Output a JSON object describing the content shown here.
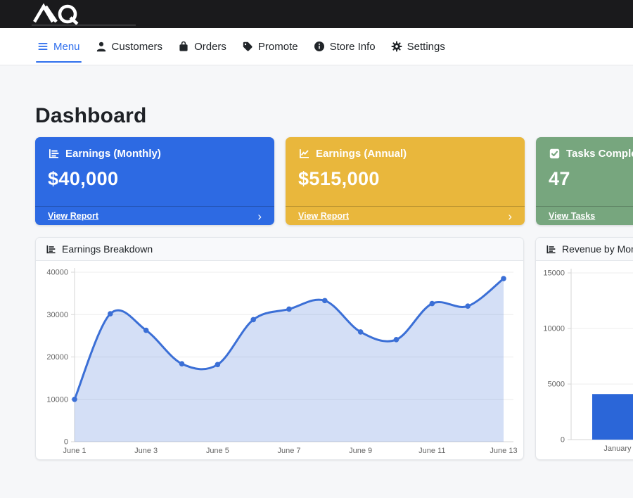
{
  "topbar": {
    "logo_text": "AIQ"
  },
  "nav": {
    "active_color": "#2f6fed",
    "items": [
      {
        "label": "Menu",
        "icon": "hamburger-icon",
        "active": true
      },
      {
        "label": "Customers",
        "icon": "person-icon",
        "active": false
      },
      {
        "label": "Orders",
        "icon": "bag-icon",
        "active": false
      },
      {
        "label": "Promote",
        "icon": "tag-icon",
        "active": false
      },
      {
        "label": "Store Info",
        "icon": "info-icon",
        "active": false
      },
      {
        "label": "Settings",
        "icon": "gear-icon",
        "active": false
      }
    ]
  },
  "page": {
    "title": "Dashboard"
  },
  "ui": {
    "chevron_right": "›"
  },
  "stat_cards": [
    {
      "title": "Earnings (Monthly)",
      "value": "$40,000",
      "link_label": "View Report",
      "color": "#2d6ae3",
      "icon": "bar-chart-horizontal-icon"
    },
    {
      "title": "Earnings (Annual)",
      "value": "$515,000",
      "link_label": "View Report",
      "color": "#e9b73c",
      "icon": "line-chart-icon"
    },
    {
      "title": "Tasks Completed",
      "value": "47",
      "link_label": "View Tasks",
      "color": "#77a67e",
      "icon": "check-square-icon"
    }
  ],
  "chart_data": [
    {
      "type": "line",
      "title": "Earnings Breakdown",
      "x": [
        "June 1",
        "June 2",
        "June 3",
        "June 4",
        "June 5",
        "June 6",
        "June 7",
        "June 8",
        "June 9",
        "June 10",
        "June 11",
        "June 12",
        "June 13"
      ],
      "values": [
        10000,
        30200,
        26300,
        18400,
        18200,
        28800,
        31300,
        33300,
        25900,
        24100,
        32600,
        32000,
        38500
      ],
      "xtick_every": 2,
      "ylim": [
        0,
        40000
      ],
      "yticks": [
        0,
        10000,
        20000,
        30000,
        40000
      ],
      "line_color": "#3b6fd6",
      "fill_color": "rgba(59,111,214,0.22)",
      "grid": true,
      "legend": "none"
    },
    {
      "type": "bar",
      "title": "Revenue by Month",
      "categories": [
        "January"
      ],
      "values": [
        4100
      ],
      "ylim": [
        0,
        15000
      ],
      "yticks": [
        0,
        5000,
        10000,
        15000
      ],
      "bar_color": "#2b66d8",
      "grid": true,
      "legend": "none"
    }
  ]
}
